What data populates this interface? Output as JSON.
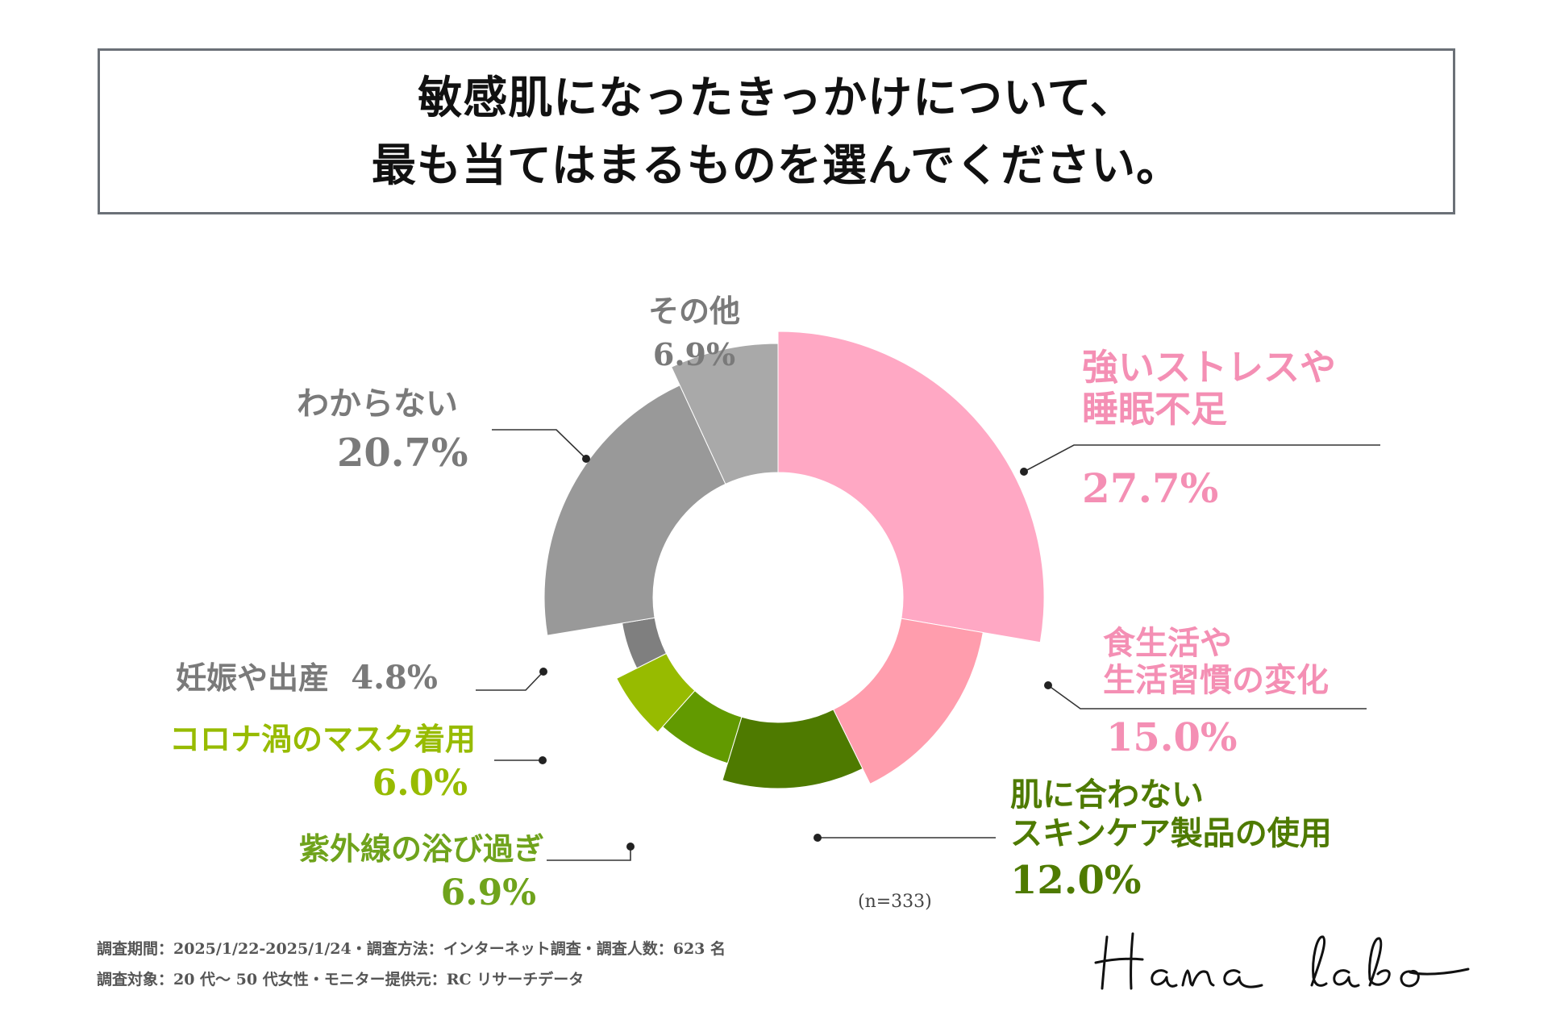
{
  "title": {
    "line1": "敏感肌になったきっかけについて、",
    "line2": "最も当てはまるものを選んでください。"
  },
  "chart_data": {
    "type": "donut",
    "sample_size": "(n=333)",
    "slices": [
      {
        "label_lines": [
          "強いストレスや",
          "睡眠不足"
        ],
        "value": 27.7,
        "display": "27.7%",
        "color": "#ffa8c4"
      },
      {
        "label_lines": [
          "食生活や",
          "生活習慣の変化"
        ],
        "value": 15.0,
        "display": "15.0%",
        "color": "#ff9dad"
      },
      {
        "label_lines": [
          "肌に合わない",
          "スキンケア製品の使用"
        ],
        "value": 12.0,
        "display": "12.0%",
        "color": "#4e7a00"
      },
      {
        "label_lines": [
          "紫外線の浴び過ぎ"
        ],
        "value": 6.9,
        "display": "6.9%",
        "color": "#629a00"
      },
      {
        "label_lines": [
          "コロナ渦のマスク着用"
        ],
        "value": 6.0,
        "display": "6.0%",
        "color": "#97bb00"
      },
      {
        "label_lines": [
          "妊娠や出産"
        ],
        "value": 4.8,
        "display": "4.8%",
        "color": "#7f7f7f"
      },
      {
        "label_lines": [
          "わからない"
        ],
        "value": 20.7,
        "display": "20.7%",
        "color": "#999999"
      },
      {
        "label_lines": [
          "その他"
        ],
        "value": 6.9,
        "display": "6.9%",
        "color": "#a9a9a9"
      }
    ],
    "label_colors": {
      "pink": "#f48fb4",
      "dark_green": "#4e7a00",
      "green": "#6fa31c",
      "lime": "#97bb00",
      "gray": "#7a7a7a"
    }
  },
  "footer": {
    "line1": "調査期間：2025/1/22-2025/1/24・調査方法：インターネット調査・調査人数：623 名",
    "line2": "調査対象：20 代～ 50 代女性・モニター提供元：RC リサーチデータ"
  },
  "brand": "Hana labo"
}
